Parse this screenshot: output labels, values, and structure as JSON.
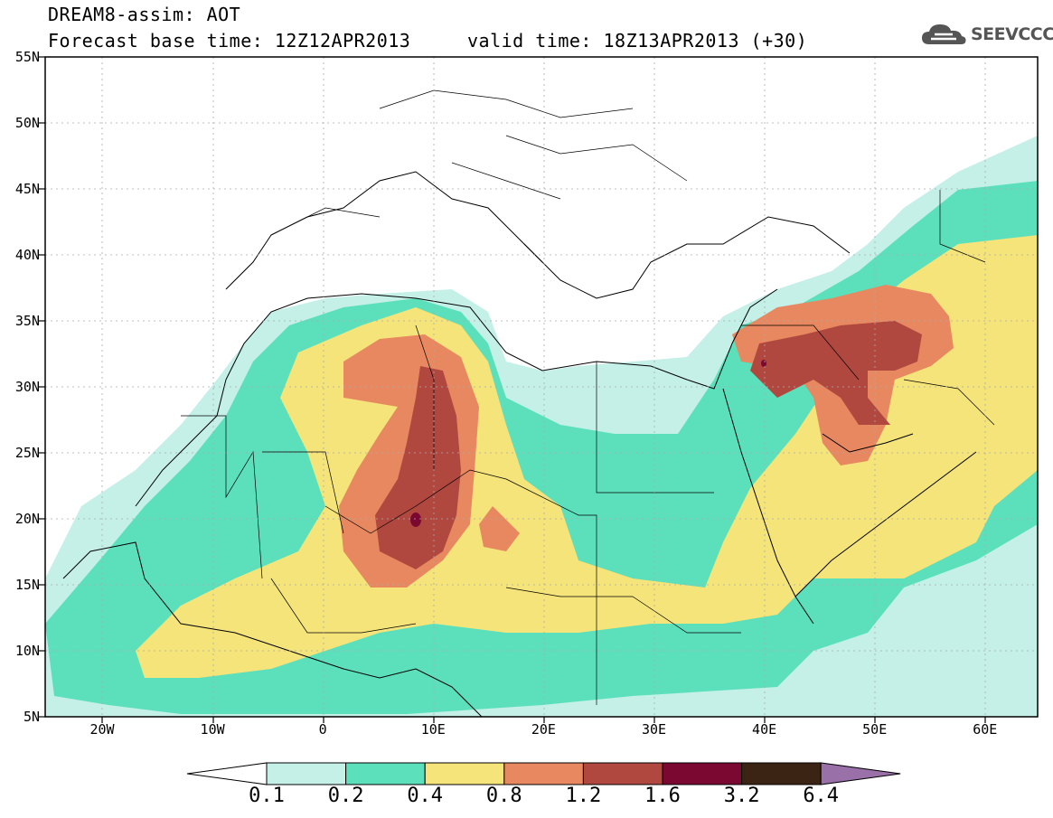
{
  "header": {
    "title_line1": "DREAM8-assim: AOT",
    "title_line2": "Forecast base time: 12Z12APR2013     valid time: 18Z13APR2013 (+30)"
  },
  "logo": {
    "text": "SEEVCCC",
    "icon": "cloud-icon"
  },
  "map": {
    "lat_labels": [
      "55N",
      "50N",
      "45N",
      "40N",
      "35N",
      "30N",
      "25N",
      "20N",
      "15N",
      "10N",
      "5N"
    ],
    "lon_labels": [
      "20W",
      "10W",
      "0",
      "10E",
      "20E",
      "30E",
      "40E",
      "50E",
      "60E"
    ]
  },
  "colorbar": {
    "labels": [
      "0.1",
      "0.2",
      "0.4",
      "0.8",
      "1.2",
      "1.6",
      "3.2",
      "6.4"
    ],
    "colors": [
      "#ffffff",
      "#c4f0e8",
      "#5ce0bc",
      "#f5e47a",
      "#e88860",
      "#b04840",
      "#7a0830",
      "#3c2414",
      "#9a70a8"
    ]
  }
}
